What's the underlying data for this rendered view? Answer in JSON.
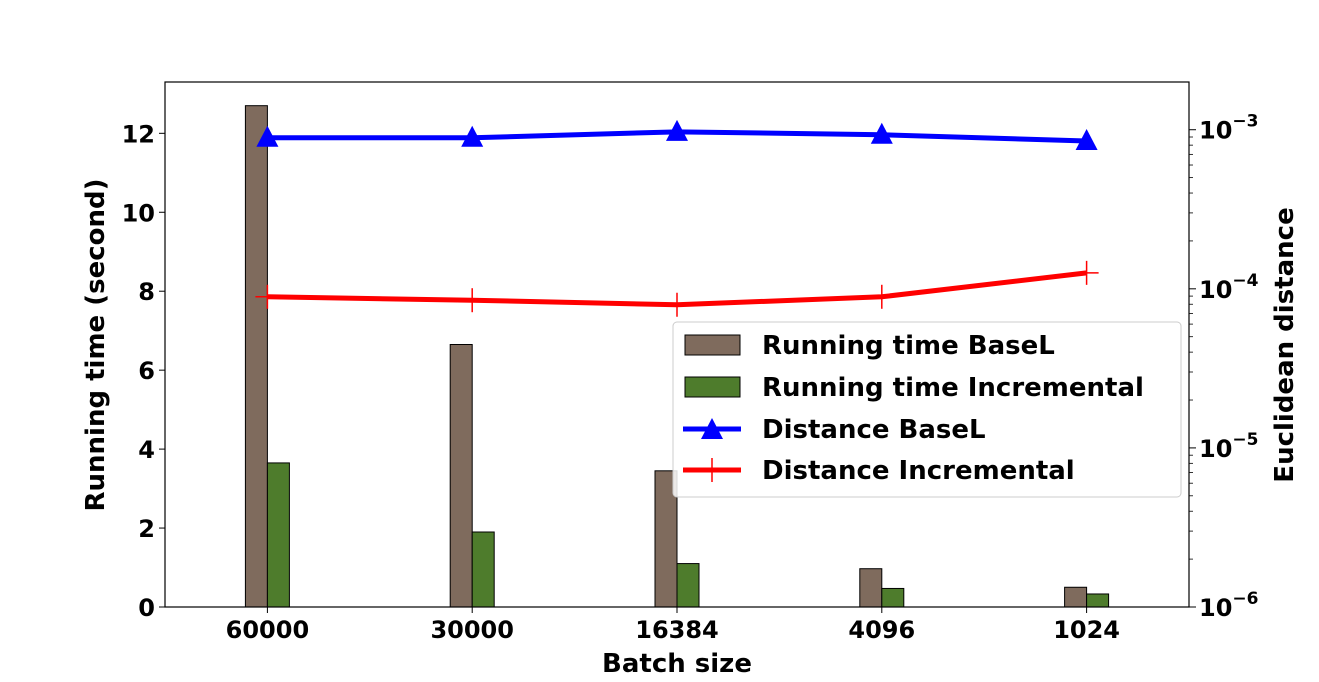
{
  "chart_data": {
    "type": "bar",
    "xlabel": "Batch size",
    "ylabel": "Running time (second)",
    "ylabel_right": "Euclidean distance",
    "categories": [
      "60000",
      "30000",
      "16384",
      "4096",
      "1024"
    ],
    "ylim": [
      0,
      13.3
    ],
    "yticks": [
      "0",
      "2",
      "4",
      "6",
      "8",
      "10",
      "12"
    ],
    "y2lim_log10": [
      -6,
      -2.7
    ],
    "y2_scale": "log",
    "y2ticks": [
      {
        "base": "10",
        "exp": "−3",
        "value": 0.001
      },
      {
        "base": "10",
        "exp": "−4",
        "value": 0.0001
      },
      {
        "base": "10",
        "exp": "−5",
        "value": 1e-05
      },
      {
        "base": "10",
        "exp": "−6",
        "value": 1e-06
      }
    ],
    "bar_series": [
      {
        "name": "Running time BaseL",
        "color": "#7f6b5d",
        "values": [
          12.7,
          6.65,
          3.45,
          0.97,
          0.5
        ]
      },
      {
        "name": "Running time Incremental",
        "color": "#4e7c2c",
        "values": [
          3.65,
          1.9,
          1.1,
          0.47,
          0.33
        ]
      }
    ],
    "line_series": [
      {
        "name": "Distance BaseL",
        "color": "#0000ff",
        "marker": "triangle",
        "values": [
          0.00089,
          0.00089,
          0.00097,
          0.00093,
          0.00085
        ]
      },
      {
        "name": "Distance Incremental",
        "color": "#ff0000",
        "marker": "plus",
        "values": [
          8.91e-05,
          8.48e-05,
          7.94e-05,
          8.91e-05,
          0.000126
        ]
      }
    ],
    "legend_position": "center-right",
    "grid": false
  }
}
